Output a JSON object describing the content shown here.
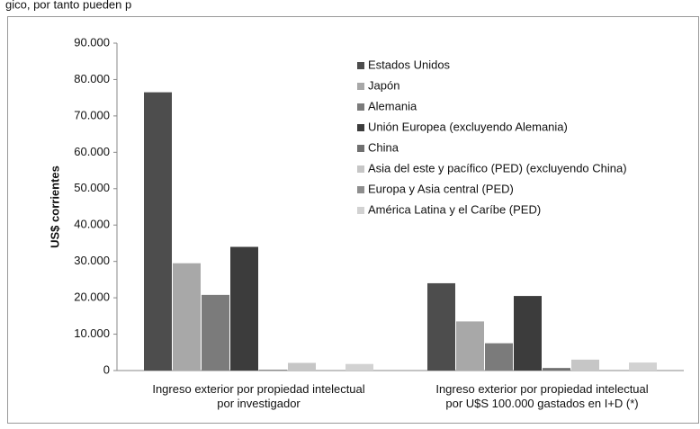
{
  "header_fragment": "gico, por tanto pueden p",
  "chart_data": {
    "type": "bar",
    "y_label": "US$ corrientes",
    "categories": [
      "Ingreso exterior por propiedad intelectual\npor investigador",
      "Ingreso exterior por propiedad intelectual\npor U$S 100.000 gastados en I+D (*)"
    ],
    "series": [
      {
        "name": "Estados Unidos",
        "color": "#4d4d4d",
        "values": [
          76500,
          24000
        ]
      },
      {
        "name": "Japón",
        "color": "#a8a8a8",
        "values": [
          29500,
          13500
        ]
      },
      {
        "name": "Alemania",
        "color": "#7b7b7b",
        "values": [
          20800,
          7500
        ]
      },
      {
        "name": "Unión Europea (excluyendo Alemania)",
        "color": "#3c3c3c",
        "values": [
          34000,
          20500
        ]
      },
      {
        "name": "China",
        "color": "#707070",
        "values": [
          200,
          700
        ]
      },
      {
        "name": "Asia del este y pacífico (PED) (excluyendo China)",
        "color": "#c6c6c6",
        "values": [
          2100,
          3000
        ]
      },
      {
        "name": "Europa y Asia central (PED)",
        "color": "#8e8e8e",
        "values": [
          null,
          null
        ]
      },
      {
        "name": "América Latina y el Caríbe (PED)",
        "color": "#d2d2d2",
        "values": [
          1800,
          2200
        ]
      }
    ],
    "ylim": [
      0,
      90000
    ],
    "yticks": [
      0,
      {
        "value": 10000,
        "label": "10.000"
      },
      {
        "value": 20000,
        "label": "20.000"
      },
      {
        "value": 30000,
        "label": "30.000"
      },
      {
        "value": 40000,
        "label": "40.000"
      },
      {
        "value": 50000,
        "label": "50.000"
      },
      {
        "value": 60000,
        "label": "60.000"
      },
      {
        "value": 70000,
        "label": "70.000"
      },
      {
        "value": 80000,
        "label": "80.000"
      },
      {
        "value": 90000,
        "label": "90.000"
      }
    ]
  }
}
